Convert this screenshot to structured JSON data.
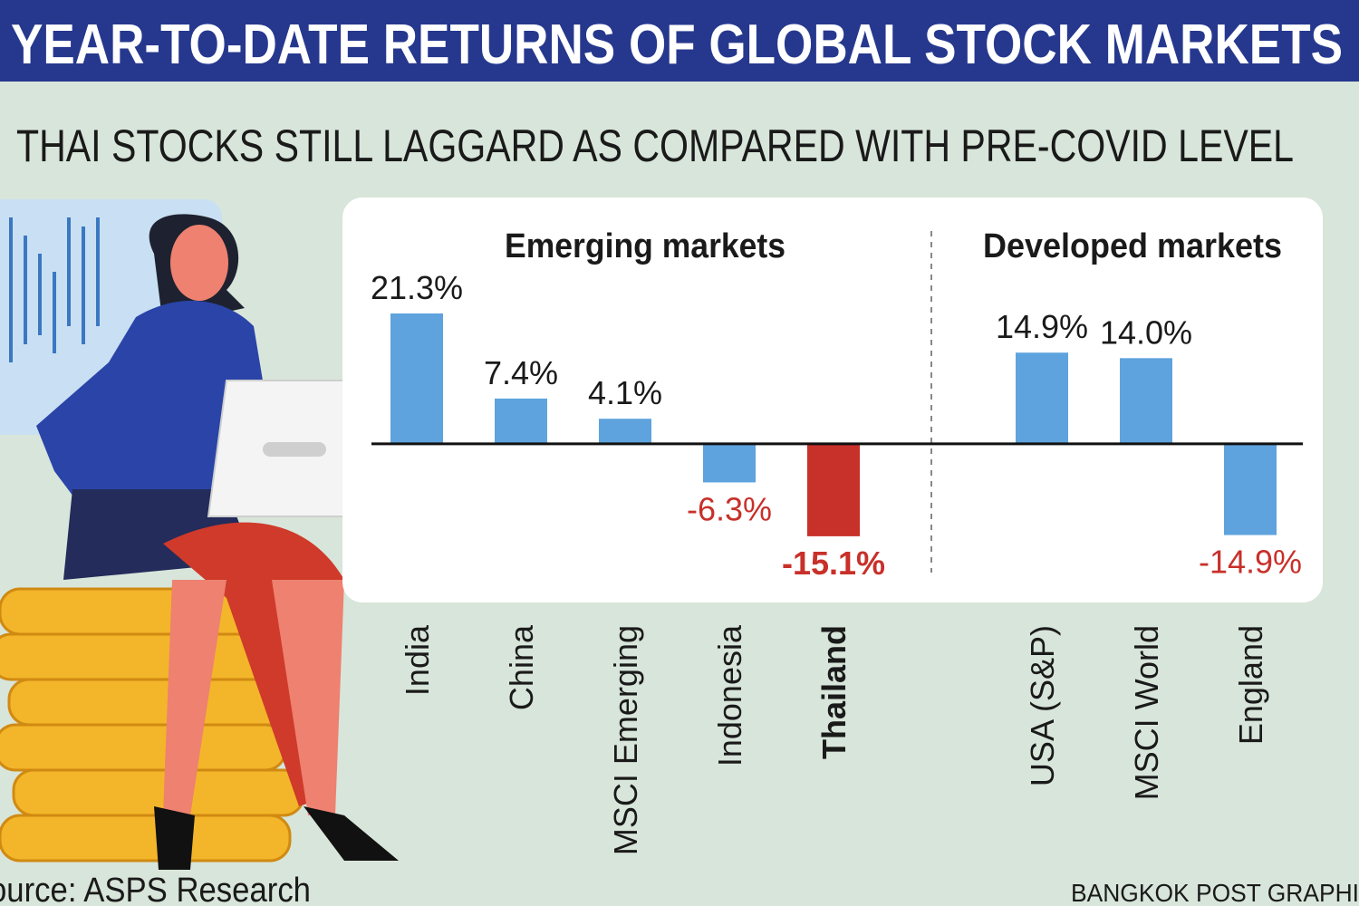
{
  "chart_data": {
    "type": "bar",
    "title": "YEAR-TO-DATE RETURNS OF GLOBAL STOCK MARKETS",
    "subtitle": "THAI STOCKS STILL LAGGARD AS COMPARED WITH PRE-COVID LEVEL",
    "source": "ource: ASPS Research",
    "credit": "BANGKOK POST GRAPHI",
    "ylim": [
      -20,
      25
    ],
    "negative_label_color": "#c8302a",
    "highlight": {
      "group": 0,
      "index": 4
    },
    "groups": [
      {
        "name": "Emerging markets",
        "categories": [
          "India",
          "China",
          "MSCI Emerging",
          "Indonesia",
          "Thailand"
        ],
        "values": [
          21.3,
          7.4,
          4.1,
          -6.3,
          -15.1
        ],
        "value_labels": [
          "21.3%",
          "7.4%",
          "4.1%",
          "-6.3%",
          "-15.1%"
        ],
        "colors": [
          "#5ea3dd",
          "#5ea3dd",
          "#5ea3dd",
          "#5ea3dd",
          "#c8302a"
        ]
      },
      {
        "name": "Developed markets",
        "categories": [
          "USA (S&P)",
          "MSCI World",
          "England"
        ],
        "values": [
          14.9,
          14.0,
          -14.9
        ],
        "value_labels": [
          "14.9%",
          "14.0%",
          "-14.9%"
        ],
        "colors": [
          "#5ea3dd",
          "#5ea3dd",
          "#5ea3dd"
        ]
      }
    ]
  }
}
